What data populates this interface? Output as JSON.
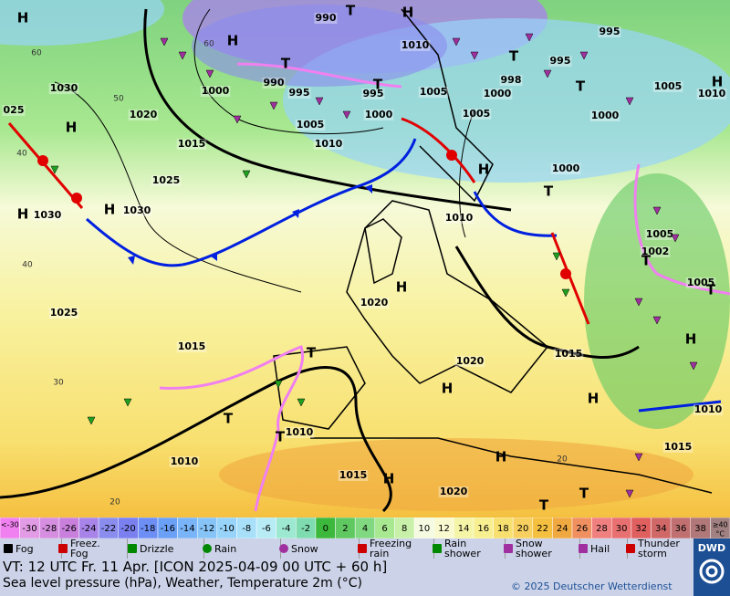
{
  "map": {
    "isobar_labels": [
      "990",
      "1010",
      "995",
      "995",
      "1030",
      "1020",
      "1000",
      "990",
      "995",
      "1000",
      "995",
      "1005",
      "1000",
      "1005",
      "998",
      "1005",
      "1010",
      "1015",
      "1025",
      "1000",
      "1000",
      "1005",
      "1010",
      "1030",
      "1030",
      "1010",
      "1005",
      "1002",
      "1005",
      "1020",
      "1025",
      "1015",
      "1015",
      "1020",
      "1010",
      "1010",
      "1015",
      "1010",
      "1015",
      "1020",
      "025"
    ],
    "temperature_labels": [
      "60",
      "50",
      "60",
      "40",
      "40",
      "30",
      "20",
      "20"
    ],
    "pressure_centers": [
      "H",
      "T",
      "H",
      "H",
      "T",
      "T",
      "H",
      "H",
      "H",
      "H",
      "H",
      "T",
      "T",
      "T",
      "H",
      "T",
      "T",
      "H",
      "H",
      "H",
      "H",
      "H",
      "T",
      "T",
      "T",
      "T",
      "T"
    ]
  },
  "color_scale": {
    "labels": [
      "<-30",
      "-30",
      "-28",
      "-26",
      "-24",
      "-22",
      "-20",
      "-18",
      "-16",
      "-14",
      "-12",
      "-10",
      "-8",
      "-6",
      "-4",
      "-2",
      "0",
      "2",
      "4",
      "6",
      "8",
      "10",
      "12",
      "14",
      "16",
      "18",
      "20",
      "22",
      "24",
      "26",
      "28",
      "30",
      "32",
      "34",
      "36",
      "38",
      "≥40"
    ],
    "colors": [
      "#f080f0",
      "#e29be5",
      "#d58ee0",
      "#c880dc",
      "#a884e8",
      "#8a8cee",
      "#7a80f0",
      "#6c8ef5",
      "#6aa0f5",
      "#78b4f7",
      "#86c4f8",
      "#98d4fa",
      "#a8e0fa",
      "#b8ecf5",
      "#9de8d0",
      "#7edcb0",
      "#3cb83c",
      "#60c860",
      "#80d880",
      "#a8e890",
      "#c8f0a8",
      "#f4fbe0",
      "#fafad0",
      "#f5f5a8",
      "#f8f090",
      "#f8e070",
      "#f8d060",
      "#f5c040",
      "#f0a840",
      "#f09060",
      "#f08080",
      "#e87070",
      "#e06060",
      "#d06868",
      "#c07070",
      "#b07878",
      "#a08080"
    ],
    "unit": "°C"
  },
  "legend": [
    "Fog",
    "Freez. Fog",
    "Drizzle",
    "Rain",
    "Snow",
    "Freezing rain",
    "Rain shower",
    "Snow shower",
    "Hail",
    "Thunder storm"
  ],
  "footer": {
    "valid_time": "VT: 12 UTC Fr.  11 Apr. [ICON 2025-04-09  00 UTC + 60 h]",
    "description": "Sea level pressure (hPa), Weather, Temperature 2m (°C)",
    "copyright": "© 2025 Deutscher Wetterdienst",
    "logo": "DWD"
  }
}
